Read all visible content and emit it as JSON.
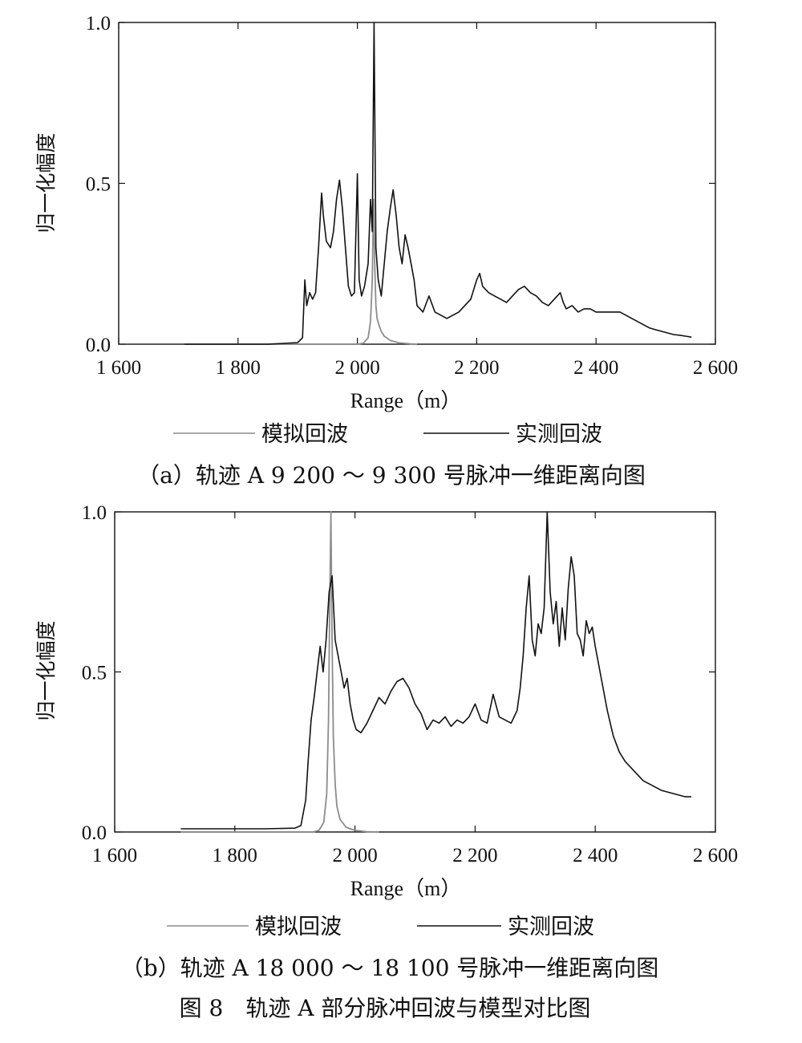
{
  "figure_caption": "图 8　轨迹 A 部分脉冲回波与模型对比图",
  "legend": {
    "simulated": "模拟回波",
    "measured": "实测回波"
  },
  "colors": {
    "simulated": "#8c8c8c",
    "measured": "#111111"
  },
  "chart_data": [
    {
      "type": "line",
      "caption": "（a）轨迹 A  9  200 ～ 9  300 号脉冲一维距离向图",
      "xlabel": "Range（m）",
      "ylabel": "归一化幅度",
      "xlim": [
        1600,
        2600
      ],
      "ylim": [
        0,
        1
      ],
      "xticks": [
        1600,
        1800,
        2000,
        2200,
        2400,
        2600
      ],
      "xtick_labels": [
        "1 600",
        "1 800",
        "2 000",
        "2 200",
        "2 400",
        "2 600"
      ],
      "yticks": [
        0,
        0.5,
        1
      ],
      "ytick_labels": [
        "0.0",
        "0.5",
        "1.0"
      ],
      "grid": false,
      "series": [
        {
          "name": "模拟回波",
          "key": "simulated",
          "x": [
            1710,
            1900,
            2000,
            2010,
            2018,
            2022,
            2025,
            2027,
            2029,
            2031,
            2033,
            2036,
            2040,
            2045,
            2055,
            2070,
            2090,
            2100
          ],
          "y": [
            0,
            0,
            0,
            0.003,
            0.02,
            0.07,
            0.2,
            0.45,
            0.25,
            0.12,
            0.08,
            0.06,
            0.04,
            0.025,
            0.012,
            0.004,
            0.001,
            0
          ]
        },
        {
          "name": "实测回波",
          "key": "measured",
          "x": [
            1710,
            1850,
            1900,
            1908,
            1912,
            1915,
            1920,
            1925,
            1930,
            1935,
            1940,
            1943,
            1948,
            1955,
            1960,
            1965,
            1970,
            1975,
            1980,
            1985,
            1990,
            1995,
            2000,
            2003,
            2007,
            2012,
            2018,
            2022,
            2025,
            2028,
            2031,
            2035,
            2040,
            2045,
            2050,
            2055,
            2060,
            2065,
            2070,
            2075,
            2080,
            2085,
            2090,
            2095,
            2100,
            2110,
            2120,
            2130,
            2140,
            2150,
            2160,
            2170,
            2180,
            2190,
            2200,
            2205,
            2210,
            2220,
            2230,
            2240,
            2250,
            2260,
            2270,
            2280,
            2290,
            2300,
            2310,
            2320,
            2330,
            2340,
            2345,
            2350,
            2360,
            2370,
            2380,
            2390,
            2400,
            2410,
            2420,
            2430,
            2440,
            2450,
            2460,
            2470,
            2480,
            2490,
            2500,
            2510,
            2520,
            2530,
            2540,
            2550,
            2560
          ],
          "y": [
            0,
            0,
            0.005,
            0.02,
            0.2,
            0.12,
            0.16,
            0.14,
            0.16,
            0.3,
            0.47,
            0.4,
            0.32,
            0.3,
            0.35,
            0.45,
            0.51,
            0.42,
            0.3,
            0.18,
            0.15,
            0.16,
            0.53,
            0.2,
            0.15,
            0.18,
            0.25,
            0.45,
            0.35,
            1.0,
            0.3,
            0.2,
            0.15,
            0.25,
            0.35,
            0.42,
            0.48,
            0.4,
            0.3,
            0.25,
            0.34,
            0.3,
            0.25,
            0.2,
            0.12,
            0.1,
            0.15,
            0.1,
            0.09,
            0.08,
            0.09,
            0.1,
            0.12,
            0.14,
            0.2,
            0.22,
            0.18,
            0.16,
            0.15,
            0.14,
            0.13,
            0.15,
            0.17,
            0.18,
            0.16,
            0.15,
            0.13,
            0.12,
            0.14,
            0.16,
            0.13,
            0.11,
            0.12,
            0.1,
            0.11,
            0.11,
            0.1,
            0.1,
            0.1,
            0.1,
            0.1,
            0.09,
            0.08,
            0.07,
            0.06,
            0.05,
            0.045,
            0.04,
            0.035,
            0.03,
            0.028,
            0.025,
            0.022
          ]
        }
      ]
    },
    {
      "type": "line",
      "caption": "（b）轨迹 A  18  000 ～ 18  100 号脉冲一维距离向图",
      "xlabel": "Range（m）",
      "ylabel": "归一化幅度",
      "xlim": [
        1600,
        2600
      ],
      "ylim": [
        0,
        1
      ],
      "xticks": [
        1600,
        1800,
        2000,
        2200,
        2400,
        2600
      ],
      "xtick_labels": [
        "1 600",
        "1 800",
        "2 000",
        "2 200",
        "2 400",
        "2 600"
      ],
      "yticks": [
        0,
        0.5,
        1
      ],
      "ytick_labels": [
        "0.0",
        "0.5",
        "1.0"
      ],
      "grid": false,
      "series": [
        {
          "name": "模拟回波",
          "key": "simulated",
          "x": [
            1710,
            1900,
            1930,
            1940,
            1948,
            1953,
            1956,
            1958,
            1960,
            1962,
            1964,
            1967,
            1970,
            1975,
            1985,
            2000,
            2020,
            2040
          ],
          "y": [
            0,
            0,
            0,
            0.005,
            0.03,
            0.12,
            0.35,
            0.7,
            1.0,
            0.6,
            0.3,
            0.15,
            0.08,
            0.04,
            0.015,
            0.005,
            0.001,
            0
          ]
        },
        {
          "name": "实测回波",
          "key": "measured",
          "x": [
            1710,
            1850,
            1900,
            1910,
            1918,
            1922,
            1927,
            1932,
            1937,
            1942,
            1947,
            1952,
            1957,
            1962,
            1967,
            1972,
            1977,
            1982,
            1987,
            1992,
            1997,
            2002,
            2010,
            2020,
            2030,
            2040,
            2050,
            2060,
            2070,
            2080,
            2090,
            2100,
            2110,
            2120,
            2130,
            2140,
            2150,
            2160,
            2170,
            2180,
            2190,
            2200,
            2210,
            2220,
            2230,
            2240,
            2250,
            2260,
            2265,
            2270,
            2275,
            2280,
            2285,
            2290,
            2295,
            2300,
            2305,
            2310,
            2315,
            2320,
            2325,
            2330,
            2335,
            2340,
            2345,
            2350,
            2355,
            2360,
            2365,
            2370,
            2375,
            2380,
            2385,
            2390,
            2395,
            2400,
            2410,
            2420,
            2430,
            2440,
            2450,
            2460,
            2470,
            2480,
            2490,
            2500,
            2510,
            2520,
            2530,
            2540,
            2550,
            2560
          ],
          "y": [
            0.01,
            0.01,
            0.012,
            0.02,
            0.1,
            0.22,
            0.35,
            0.42,
            0.5,
            0.58,
            0.5,
            0.6,
            0.75,
            0.8,
            0.6,
            0.55,
            0.5,
            0.45,
            0.48,
            0.4,
            0.35,
            0.32,
            0.31,
            0.34,
            0.38,
            0.42,
            0.4,
            0.44,
            0.47,
            0.48,
            0.45,
            0.4,
            0.37,
            0.32,
            0.35,
            0.34,
            0.36,
            0.33,
            0.35,
            0.34,
            0.36,
            0.4,
            0.35,
            0.34,
            0.43,
            0.36,
            0.35,
            0.34,
            0.36,
            0.38,
            0.45,
            0.55,
            0.7,
            0.8,
            0.6,
            0.55,
            0.65,
            0.62,
            0.7,
            1.0,
            0.75,
            0.65,
            0.72,
            0.58,
            0.7,
            0.6,
            0.76,
            0.86,
            0.8,
            0.62,
            0.6,
            0.55,
            0.66,
            0.62,
            0.64,
            0.58,
            0.48,
            0.38,
            0.3,
            0.25,
            0.22,
            0.2,
            0.18,
            0.16,
            0.15,
            0.14,
            0.13,
            0.125,
            0.12,
            0.115,
            0.11,
            0.11
          ]
        }
      ]
    }
  ]
}
